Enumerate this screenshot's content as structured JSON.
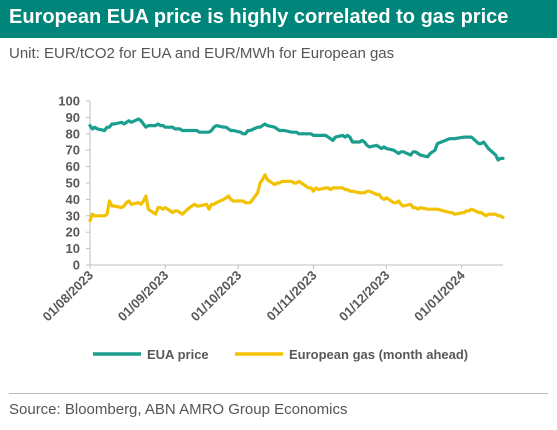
{
  "header": {
    "title": "European EUA price is highly correlated to gas price",
    "subtitle": "Unit: EUR/tCO2 for EUA and EUR/MWh for European gas"
  },
  "footer": {
    "source": "Source: Bloomberg, ABN AMRO Group Economics"
  },
  "colors": {
    "title_bg": "#00857a",
    "eua": "#1a9e8f",
    "gas": "#f2c200",
    "axis": "#bfbfbf",
    "text": "#595959"
  },
  "chart_data": {
    "type": "line",
    "title": "European EUA price is highly correlated to gas price",
    "subtitle": "Unit: EUR/tCO2 for EUA and EUR/MWh for European gas",
    "xlabel": "",
    "ylabel": "",
    "ylim": [
      0,
      100
    ],
    "yticks": [
      0,
      10,
      20,
      30,
      40,
      50,
      60,
      70,
      80,
      90,
      100
    ],
    "xlim": [
      "2023-08-01",
      "2024-01-18"
    ],
    "xticks": [
      "01/08/2023",
      "01/09/2023",
      "01/10/2023",
      "01/11/2023",
      "01/12/2023",
      "01/01/2024"
    ],
    "grid": false,
    "legend": "bottom",
    "series": [
      {
        "name": "EUA price",
        "color": "#1a9e8f",
        "points": [
          [
            "2023-08-01",
            85
          ],
          [
            "2023-08-02",
            83
          ],
          [
            "2023-08-03",
            84
          ],
          [
            "2023-08-04",
            83
          ],
          [
            "2023-08-07",
            82
          ],
          [
            "2023-08-08",
            84
          ],
          [
            "2023-08-09",
            84
          ],
          [
            "2023-08-10",
            86
          ],
          [
            "2023-08-11",
            86
          ],
          [
            "2023-08-14",
            87
          ],
          [
            "2023-08-15",
            86
          ],
          [
            "2023-08-16",
            87
          ],
          [
            "2023-08-17",
            88
          ],
          [
            "2023-08-18",
            87
          ],
          [
            "2023-08-21",
            89
          ],
          [
            "2023-08-22",
            88
          ],
          [
            "2023-08-23",
            86
          ],
          [
            "2023-08-24",
            84
          ],
          [
            "2023-08-25",
            85
          ],
          [
            "2023-08-28",
            85
          ],
          [
            "2023-08-29",
            86
          ],
          [
            "2023-08-30",
            85
          ],
          [
            "2023-08-31",
            85
          ],
          [
            "2023-09-01",
            84
          ],
          [
            "2023-09-04",
            84
          ],
          [
            "2023-09-05",
            83
          ],
          [
            "2023-09-06",
            83
          ],
          [
            "2023-09-07",
            83
          ],
          [
            "2023-09-08",
            82
          ],
          [
            "2023-09-11",
            82
          ],
          [
            "2023-09-12",
            82
          ],
          [
            "2023-09-13",
            82
          ],
          [
            "2023-09-14",
            82
          ],
          [
            "2023-09-15",
            81
          ],
          [
            "2023-09-18",
            81
          ],
          [
            "2023-09-19",
            81
          ],
          [
            "2023-09-20",
            82
          ],
          [
            "2023-09-21",
            84
          ],
          [
            "2023-09-22",
            85
          ],
          [
            "2023-09-25",
            84
          ],
          [
            "2023-09-26",
            84
          ],
          [
            "2023-09-27",
            83
          ],
          [
            "2023-09-28",
            82
          ],
          [
            "2023-09-29",
            82
          ],
          [
            "2023-10-02",
            81
          ],
          [
            "2023-10-03",
            80
          ],
          [
            "2023-10-04",
            80
          ],
          [
            "2023-10-05",
            82
          ],
          [
            "2023-10-06",
            82
          ],
          [
            "2023-10-09",
            84
          ],
          [
            "2023-10-10",
            84
          ],
          [
            "2023-10-11",
            85
          ],
          [
            "2023-10-12",
            86
          ],
          [
            "2023-10-13",
            85
          ],
          [
            "2023-10-16",
            84
          ],
          [
            "2023-10-17",
            83
          ],
          [
            "2023-10-18",
            82
          ],
          [
            "2023-10-19",
            82
          ],
          [
            "2023-10-20",
            82
          ],
          [
            "2023-10-23",
            81
          ],
          [
            "2023-10-24",
            81
          ],
          [
            "2023-10-25",
            81
          ],
          [
            "2023-10-26",
            80
          ],
          [
            "2023-10-27",
            80
          ],
          [
            "2023-10-30",
            80
          ],
          [
            "2023-10-31",
            80
          ],
          [
            "2023-11-01",
            79
          ],
          [
            "2023-11-02",
            79
          ],
          [
            "2023-11-03",
            79
          ],
          [
            "2023-11-06",
            79
          ],
          [
            "2023-11-07",
            78
          ],
          [
            "2023-11-08",
            77
          ],
          [
            "2023-11-09",
            76
          ],
          [
            "2023-11-10",
            78
          ],
          [
            "2023-11-13",
            79
          ],
          [
            "2023-11-14",
            78
          ],
          [
            "2023-11-15",
            79
          ],
          [
            "2023-11-16",
            78
          ],
          [
            "2023-11-17",
            75
          ],
          [
            "2023-11-20",
            75
          ],
          [
            "2023-11-21",
            76
          ],
          [
            "2023-11-22",
            75
          ],
          [
            "2023-11-23",
            73
          ],
          [
            "2023-11-24",
            72
          ],
          [
            "2023-11-27",
            73
          ],
          [
            "2023-11-28",
            72
          ],
          [
            "2023-11-29",
            71
          ],
          [
            "2023-11-30",
            72
          ],
          [
            "2023-12-01",
            71
          ],
          [
            "2023-12-04",
            70
          ],
          [
            "2023-12-05",
            69
          ],
          [
            "2023-12-06",
            68
          ],
          [
            "2023-12-07",
            69
          ],
          [
            "2023-12-08",
            69
          ],
          [
            "2023-12-11",
            67
          ],
          [
            "2023-12-12",
            69
          ],
          [
            "2023-12-13",
            69
          ],
          [
            "2023-12-14",
            68
          ],
          [
            "2023-12-15",
            67
          ],
          [
            "2023-12-18",
            66
          ],
          [
            "2023-12-19",
            68
          ],
          [
            "2023-12-20",
            69
          ],
          [
            "2023-12-21",
            70
          ],
          [
            "2023-12-22",
            74
          ],
          [
            "2023-12-27",
            77
          ],
          [
            "2023-12-28",
            77
          ],
          [
            "2023-12-29",
            77
          ],
          [
            "2024-01-02",
            78
          ],
          [
            "2024-01-03",
            78
          ],
          [
            "2024-01-04",
            78
          ],
          [
            "2024-01-05",
            78
          ],
          [
            "2024-01-08",
            74
          ],
          [
            "2024-01-09",
            74
          ],
          [
            "2024-01-10",
            75
          ],
          [
            "2024-01-11",
            73
          ],
          [
            "2024-01-12",
            71
          ],
          [
            "2024-01-15",
            67
          ],
          [
            "2024-01-16",
            64
          ],
          [
            "2024-01-17",
            65
          ],
          [
            "2024-01-18",
            65
          ]
        ]
      },
      {
        "name": "European gas (month ahead)",
        "color": "#f2c200",
        "points": [
          [
            "2023-08-01",
            27
          ],
          [
            "2023-08-02",
            31
          ],
          [
            "2023-08-03",
            30
          ],
          [
            "2023-08-04",
            30
          ],
          [
            "2023-08-07",
            30
          ],
          [
            "2023-08-08",
            31
          ],
          [
            "2023-08-09",
            39
          ],
          [
            "2023-08-10",
            36
          ],
          [
            "2023-08-11",
            36
          ],
          [
            "2023-08-14",
            35
          ],
          [
            "2023-08-15",
            36
          ],
          [
            "2023-08-16",
            38
          ],
          [
            "2023-08-17",
            39
          ],
          [
            "2023-08-18",
            37
          ],
          [
            "2023-08-21",
            38
          ],
          [
            "2023-08-22",
            37
          ],
          [
            "2023-08-23",
            39
          ],
          [
            "2023-08-24",
            42
          ],
          [
            "2023-08-25",
            34
          ],
          [
            "2023-08-28",
            31
          ],
          [
            "2023-08-29",
            35
          ],
          [
            "2023-08-30",
            35
          ],
          [
            "2023-08-31",
            34
          ],
          [
            "2023-09-01",
            35
          ],
          [
            "2023-09-04",
            32
          ],
          [
            "2023-09-05",
            33
          ],
          [
            "2023-09-06",
            33
          ],
          [
            "2023-09-07",
            32
          ],
          [
            "2023-09-08",
            31
          ],
          [
            "2023-09-11",
            35
          ],
          [
            "2023-09-12",
            36
          ],
          [
            "2023-09-13",
            37
          ],
          [
            "2023-09-14",
            36
          ],
          [
            "2023-09-15",
            36
          ],
          [
            "2023-09-18",
            37
          ],
          [
            "2023-09-19",
            34
          ],
          [
            "2023-09-20",
            37
          ],
          [
            "2023-09-21",
            37
          ],
          [
            "2023-09-22",
            38
          ],
          [
            "2023-09-25",
            40
          ],
          [
            "2023-09-26",
            41
          ],
          [
            "2023-09-27",
            42
          ],
          [
            "2023-09-28",
            40
          ],
          [
            "2023-09-29",
            39
          ],
          [
            "2023-10-02",
            39
          ],
          [
            "2023-10-03",
            39
          ],
          [
            "2023-10-04",
            38
          ],
          [
            "2023-10-05",
            38
          ],
          [
            "2023-10-06",
            38
          ],
          [
            "2023-10-09",
            44
          ],
          [
            "2023-10-10",
            50
          ],
          [
            "2023-10-11",
            52
          ],
          [
            "2023-10-12",
            55
          ],
          [
            "2023-10-13",
            52
          ],
          [
            "2023-10-16",
            49
          ],
          [
            "2023-10-17",
            50
          ],
          [
            "2023-10-18",
            50
          ],
          [
            "2023-10-19",
            51
          ],
          [
            "2023-10-20",
            51
          ],
          [
            "2023-10-23",
            51
          ],
          [
            "2023-10-24",
            50
          ],
          [
            "2023-10-25",
            50
          ],
          [
            "2023-10-26",
            51
          ],
          [
            "2023-10-27",
            50
          ],
          [
            "2023-10-30",
            47
          ],
          [
            "2023-10-31",
            47
          ],
          [
            "2023-11-01",
            45
          ],
          [
            "2023-11-02",
            47
          ],
          [
            "2023-11-03",
            46
          ],
          [
            "2023-11-06",
            47
          ],
          [
            "2023-11-07",
            47
          ],
          [
            "2023-11-08",
            46
          ],
          [
            "2023-11-09",
            47
          ],
          [
            "2023-11-10",
            47
          ],
          [
            "2023-11-13",
            47
          ],
          [
            "2023-11-14",
            46
          ],
          [
            "2023-11-15",
            46
          ],
          [
            "2023-11-16",
            45
          ],
          [
            "2023-11-17",
            45
          ],
          [
            "2023-11-20",
            44
          ],
          [
            "2023-11-21",
            44
          ],
          [
            "2023-11-22",
            44
          ],
          [
            "2023-11-23",
            45
          ],
          [
            "2023-11-24",
            45
          ],
          [
            "2023-11-27",
            43
          ],
          [
            "2023-11-28",
            43
          ],
          [
            "2023-11-29",
            41
          ],
          [
            "2023-11-30",
            40
          ],
          [
            "2023-12-01",
            41
          ],
          [
            "2023-12-04",
            38
          ],
          [
            "2023-12-05",
            38
          ],
          [
            "2023-12-06",
            39
          ],
          [
            "2023-12-07",
            37
          ],
          [
            "2023-12-08",
            36
          ],
          [
            "2023-12-11",
            37
          ],
          [
            "2023-12-12",
            35
          ],
          [
            "2023-12-13",
            35
          ],
          [
            "2023-12-14",
            34
          ],
          [
            "2023-12-15",
            35
          ],
          [
            "2023-12-18",
            34
          ],
          [
            "2023-12-19",
            34
          ],
          [
            "2023-12-20",
            34
          ],
          [
            "2023-12-21",
            34
          ],
          [
            "2023-12-22",
            34
          ],
          [
            "2023-12-27",
            32
          ],
          [
            "2023-12-28",
            32
          ],
          [
            "2023-12-29",
            31
          ],
          [
            "2024-01-02",
            32
          ],
          [
            "2024-01-03",
            33
          ],
          [
            "2024-01-04",
            33
          ],
          [
            "2024-01-05",
            34
          ],
          [
            "2024-01-08",
            32
          ],
          [
            "2024-01-09",
            32
          ],
          [
            "2024-01-10",
            31
          ],
          [
            "2024-01-11",
            30
          ],
          [
            "2024-01-12",
            31
          ],
          [
            "2024-01-15",
            31
          ],
          [
            "2024-01-16",
            30
          ],
          [
            "2024-01-17",
            30
          ],
          [
            "2024-01-18",
            29
          ]
        ]
      }
    ]
  }
}
